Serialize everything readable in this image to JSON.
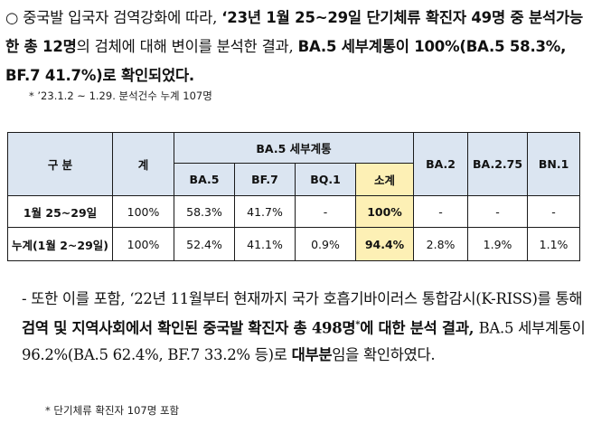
{
  "para1": {
    "bullet": "○",
    "s1": " 중국발 입국자 검역강화에 따라, ",
    "s2": "‘23년 1월 25~29일 단기체류 확진자 49명 중 분석가능한 총 12명",
    "s3": "의 검체에 대해 변이를 분석한 결과, ",
    "s4": "BA.5 세부계통이 100%(BA.5 58.3%, BF.7 41.7%)로 확인되었다.",
    "note": "* ’23.1.2 ~ 1.29. 분석건수 누계 107명"
  },
  "table": {
    "headers": {
      "gubun": "구 분",
      "total": "계",
      "ba5group": "BA.5 세부계통",
      "ba5": "BA.5",
      "bf7": "BF.7",
      "bq1": "BQ.1",
      "subtotal": "소계",
      "ba2": "BA.2",
      "ba275": "BA.2.75",
      "bn1": "BN.1"
    },
    "rows": [
      {
        "label": "1월 25~29일",
        "total": "100%",
        "ba5": "58.3%",
        "bf7": "41.7%",
        "bq1": "-",
        "subtotal": "100%",
        "ba2": "-",
        "ba275": "-",
        "bn1": "-"
      },
      {
        "label": "누계(1월 2~29일)",
        "total": "100%",
        "ba5": "52.4%",
        "bf7": "41.1%",
        "bq1": "0.9%",
        "subtotal": "94.4%",
        "ba2": "2.8%",
        "ba275": "1.9%",
        "bn1": "1.1%"
      }
    ]
  },
  "para2": {
    "s1": "- 또한 이를 포함, ‘22년 11월부터 현재까지 국가 호흡기바이러스 통합감시(K-RISS)를 통해 ",
    "s2": "검역 및 지역사회에서 확인된 중국발 확진자 총 498명",
    "sup": "*",
    "s3": "에 대한 분석 결과, ",
    "s4": "BA.5 세부계통이 96.2%(BA.5 62.4%, BF.7 33.2% 등)",
    "s5": "로 ",
    "s6": "대부분",
    "s7": "임을 확인하였다.",
    "note": "* 단기체류 확진자 107명 포함"
  },
  "colors": {
    "header_bg": "#dbe5f1",
    "subtotal_bg": "#fdf0b5"
  }
}
